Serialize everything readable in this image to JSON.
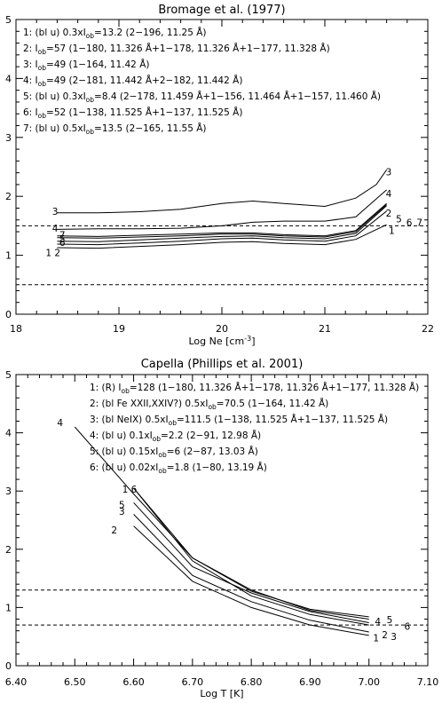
{
  "chart_data": [
    {
      "type": "line",
      "title": "Bromage et al. (1977)",
      "xlabel": "Log Ne [cm",
      "xlabel_sup": "-3",
      "xlabel_end": "]",
      "ylabel": "",
      "xlim": [
        18,
        22
      ],
      "ylim": [
        0,
        5
      ],
      "xticks": [
        "18",
        "19",
        "20",
        "21",
        "22"
      ],
      "yticks": [
        "0",
        "1",
        "2",
        "3",
        "4",
        "5"
      ],
      "legend": [
        [
          {
            "t": "1: (bl u) 0.3xI"
          },
          {
            "t": "ob",
            "sub": true
          },
          {
            "t": "=13.2 (2−196, 11.25 Å)"
          }
        ],
        [
          {
            "t": "2: I"
          },
          {
            "t": "ob",
            "sub": true
          },
          {
            "t": "=57 (1−180, 11.326 Å+1−178, 11.326 Å+1−177, 11.328 Å)"
          }
        ],
        [
          {
            "t": "3: I"
          },
          {
            "t": "ob",
            "sub": true
          },
          {
            "t": "=49 (1−164, 11.42 Å)"
          }
        ],
        [
          {
            "t": "4: I"
          },
          {
            "t": "ob",
            "sub": true
          },
          {
            "t": "=49 (2−181, 11.442 Å+2−182, 11.442 Å)"
          }
        ],
        [
          {
            "t": "5: (bl u) 0.3xI"
          },
          {
            "t": "ob",
            "sub": true
          },
          {
            "t": "=8.4 (2−178, 11.459 Å+1−156, 11.464 Å+1−157, 11.460 Å)"
          }
        ],
        [
          {
            "t": "6: I"
          },
          {
            "t": "ob",
            "sub": true
          },
          {
            "t": "=52 (1−138, 11.525 Å+1−137, 11.525 Å)"
          }
        ],
        [
          {
            "t": "7: (bl u) 0.5xI"
          },
          {
            "t": "ob",
            "sub": true
          },
          {
            "t": "=13.5 (2−165, 11.55 Å)"
          }
        ]
      ],
      "hlines": [
        1.5,
        0.5
      ],
      "series": [
        {
          "label": "1",
          "x": [
            18.4,
            18.8,
            19.2,
            19.6,
            20.0,
            20.3,
            20.6,
            21.0,
            21.3,
            21.6
          ],
          "y": [
            1.13,
            1.12,
            1.15,
            1.18,
            1.22,
            1.23,
            1.2,
            1.18,
            1.27,
            1.52
          ]
        },
        {
          "label": "2",
          "x": [
            18.4,
            18.8,
            19.2,
            19.6,
            20.0,
            20.3,
            20.6,
            21.0,
            21.3,
            21.6
          ],
          "y": [
            1.19,
            1.18,
            1.21,
            1.24,
            1.28,
            1.29,
            1.26,
            1.24,
            1.33,
            1.75
          ]
        },
        {
          "label": "3",
          "x": [
            18.4,
            18.8,
            19.2,
            19.6,
            20.0,
            20.3,
            20.6,
            21.0,
            21.3,
            21.5,
            21.6
          ],
          "y": [
            1.72,
            1.72,
            1.74,
            1.78,
            1.88,
            1.92,
            1.88,
            1.83,
            1.97,
            2.2,
            2.45
          ]
        },
        {
          "label": "4",
          "x": [
            18.4,
            18.8,
            19.2,
            19.6,
            20.0,
            20.3,
            20.6,
            21.0,
            21.3,
            21.6
          ],
          "y": [
            1.44,
            1.45,
            1.45,
            1.46,
            1.5,
            1.56,
            1.58,
            1.58,
            1.65,
            2.11
          ]
        },
        {
          "label": "5",
          "x": [
            18.4,
            18.8,
            19.2,
            19.6,
            20.0,
            20.3,
            20.6,
            21.0,
            21.3,
            21.6
          ],
          "y": [
            1.24,
            1.23,
            1.26,
            1.29,
            1.32,
            1.33,
            1.3,
            1.28,
            1.37,
            1.84
          ]
        },
        {
          "label": "6",
          "x": [
            18.4,
            18.8,
            19.2,
            19.6,
            20.0,
            20.3,
            20.6,
            21.0,
            21.3,
            21.6
          ],
          "y": [
            1.3,
            1.29,
            1.31,
            1.33,
            1.36,
            1.36,
            1.33,
            1.31,
            1.4,
            1.86
          ]
        },
        {
          "label": "7",
          "x": [
            18.4,
            18.8,
            19.2,
            19.6,
            20.0,
            20.3,
            20.6,
            21.0,
            21.3,
            21.6
          ],
          "y": [
            1.33,
            1.32,
            1.34,
            1.36,
            1.38,
            1.38,
            1.35,
            1.33,
            1.42,
            1.88
          ]
        }
      ]
    },
    {
      "type": "line",
      "title": "Capella (Phillips et al. 2001)",
      "xlabel": "Log T [K]",
      "ylabel": "",
      "xlim": [
        6.4,
        7.1
      ],
      "ylim": [
        0,
        5
      ],
      "xticks": [
        "6.40",
        "6.50",
        "6.60",
        "6.70",
        "6.80",
        "6.90",
        "7.00",
        "7.10"
      ],
      "yticks": [
        "0",
        "1",
        "2",
        "3",
        "4",
        "5"
      ],
      "legend": [
        [
          {
            "t": "1: (R) I"
          },
          {
            "t": "ob",
            "sub": true
          },
          {
            "t": "=128 (1−180, 11.326 Å+1−178, 11.326 Å+1−177, 11.328 Å)"
          }
        ],
        [
          {
            "t": "2: (bl Fe XXII,XXIV?) 0.5xI"
          },
          {
            "t": "ob",
            "sub": true
          },
          {
            "t": "=70.5 (1−164, 11.42 Å)"
          }
        ],
        [
          {
            "t": "3: (bl NeIX) 0.5xI"
          },
          {
            "t": "ob",
            "sub": true
          },
          {
            "t": "=111.5 (1−138, 11.525 Å+1−137, 11.525 Å)"
          }
        ],
        [
          {
            "t": "4: (bl u) 0.1xI"
          },
          {
            "t": "ob",
            "sub": true
          },
          {
            "t": "=2.2 (2−91, 12.98 Å)"
          }
        ],
        [
          {
            "t": "5: (bl u) 0.15xI"
          },
          {
            "t": "ob",
            "sub": true
          },
          {
            "t": "=6 (2−87, 13.03 Å)"
          }
        ],
        [
          {
            "t": "6: (bl u) 0.02xI"
          },
          {
            "t": "ob",
            "sub": true
          },
          {
            "t": "=1.8 (1−80, 13.19 Å)"
          }
        ]
      ],
      "hlines": [
        1.3,
        0.7
      ],
      "series": [
        {
          "label": "1",
          "x": [
            6.6,
            6.7,
            6.8,
            6.9,
            7.0
          ],
          "y": [
            3.05,
            1.8,
            1.2,
            0.88,
            0.7
          ]
        },
        {
          "label": "2",
          "x": [
            6.6,
            6.7,
            6.8,
            6.9,
            7.0
          ],
          "y": [
            2.4,
            1.45,
            1.0,
            0.7,
            0.52
          ]
        },
        {
          "label": "3",
          "x": [
            6.6,
            6.7,
            6.8,
            6.9,
            7.0
          ],
          "y": [
            2.6,
            1.55,
            1.1,
            0.78,
            0.58
          ]
        },
        {
          "label": "4",
          "x": [
            6.5,
            6.6,
            6.7,
            6.8,
            6.9,
            7.0
          ],
          "y": [
            4.1,
            2.95,
            1.85,
            1.3,
            0.95,
            0.8
          ]
        },
        {
          "label": "5",
          "x": [
            6.6,
            6.7,
            6.8,
            6.9,
            7.0
          ],
          "y": [
            2.8,
            1.7,
            1.25,
            0.93,
            0.74
          ]
        },
        {
          "label": "6",
          "x": [
            6.6,
            6.7,
            6.8,
            6.9,
            7.0
          ],
          "y": [
            3.05,
            1.85,
            1.28,
            0.97,
            0.84
          ]
        }
      ]
    }
  ],
  "panel1_line_labels": [
    {
      "t": "3",
      "x": 18.38,
      "y": 1.75
    },
    {
      "t": "4",
      "x": 18.38,
      "y": 1.46
    },
    {
      "t": "7",
      "x": 18.45,
      "y": 1.35
    },
    {
      "t": "5",
      "x": 18.45,
      "y": 1.28
    },
    {
      "t": "6",
      "x": 18.45,
      "y": 1.22
    },
    {
      "t": "1 2",
      "x": 18.36,
      "y": 1.05
    },
    {
      "t": "3",
      "x": 21.62,
      "y": 2.42
    },
    {
      "t": "4",
      "x": 21.62,
      "y": 2.05
    },
    {
      "t": "2",
      "x": 21.62,
      "y": 1.72
    },
    {
      "t": "5",
      "x": 21.72,
      "y": 1.62
    },
    {
      "t": "6",
      "x": 21.82,
      "y": 1.56
    },
    {
      "t": "7",
      "x": 21.92,
      "y": 1.56
    },
    {
      "t": "1",
      "x": 21.65,
      "y": 1.42
    }
  ],
  "panel2_line_labels": [
    {
      "t": "4",
      "x": 6.475,
      "y": 4.18
    },
    {
      "t": "1 6",
      "x": 6.593,
      "y": 3.03
    },
    {
      "t": "5",
      "x": 6.58,
      "y": 2.77
    },
    {
      "t": "3",
      "x": 6.58,
      "y": 2.65
    },
    {
      "t": "2",
      "x": 6.567,
      "y": 2.33
    },
    {
      "t": "4",
      "x": 7.015,
      "y": 0.76
    },
    {
      "t": "5",
      "x": 7.035,
      "y": 0.79
    },
    {
      "t": "6",
      "x": 7.065,
      "y": 0.68
    },
    {
      "t": "1",
      "x": 7.012,
      "y": 0.48
    },
    {
      "t": "2",
      "x": 7.027,
      "y": 0.53
    },
    {
      "t": "3",
      "x": 7.042,
      "y": 0.5
    }
  ]
}
